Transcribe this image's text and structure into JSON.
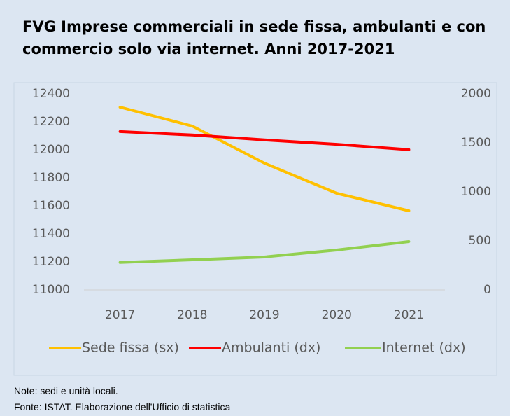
{
  "chart_data": {
    "type": "line",
    "title": "FVG Imprese commerciali in sede fissa, ambulanti e con commercio solo via internet. Anni 2017-2021",
    "categories": [
      "2017",
      "2018",
      "2019",
      "2020",
      "2021"
    ],
    "series": [
      {
        "name": "Sede fissa (sx)",
        "color": "#ffc000",
        "values": [
          12305,
          12170,
          11905,
          11690,
          11565
        ]
      },
      {
        "name": "Ambulanti (dx)",
        "color": "#ff0000",
        "axis": "y2",
        "values": [
          1615,
          1580,
          1530,
          1485,
          1430
        ]
      },
      {
        "name": "Internet (dx)",
        "color": "#92d050",
        "axis": "y2",
        "values": [
          280,
          307,
          336,
          407,
          493
        ]
      }
    ],
    "ylim": [
      11000,
      12400
    ],
    "yticks": [
      11000,
      11200,
      11400,
      11600,
      11800,
      12000,
      12200,
      12400
    ],
    "y2lim": [
      0,
      2000
    ],
    "y2ticks": [
      0,
      500,
      1000,
      1500,
      2000
    ],
    "legend": "bottom"
  },
  "notes": [
    "Note: sedi e unità locali.",
    "Fonte: ISTAT. Elaborazione dell'Ufficio di statistica"
  ]
}
